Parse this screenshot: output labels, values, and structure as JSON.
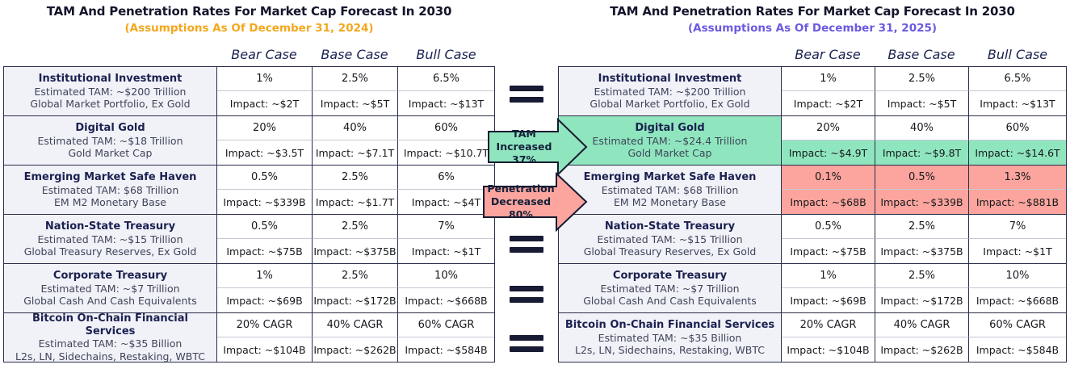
{
  "chart_data": [
    {
      "type": "table",
      "title": "TAM And Penetration Rates For Market Cap Forecast In 2030",
      "subtitle": "(Assumptions As Of December 31, 2024)",
      "subtitle_color": "#F2A81D",
      "columns": [
        "Bear Case",
        "Base Case",
        "Bull Case"
      ],
      "rows": [
        {
          "name": "Institutional Investment",
          "tam": "Estimated TAM: ~$200 Trillion",
          "desc": "Global Market Portfolio, Ex Gold",
          "values": [
            "1%",
            "2.5%",
            "6.5%"
          ],
          "impacts": [
            "Impact: ~$2T",
            "Impact: ~$5T",
            "Impact: ~$13T"
          ]
        },
        {
          "name": "Digital Gold",
          "tam": "Estimated TAM: ~$18 Trillion",
          "desc": "Gold Market Cap",
          "values": [
            "20%",
            "40%",
            "60%"
          ],
          "impacts": [
            "Impact: ~$3.5T",
            "Impact: ~$7.1T",
            "Impact: ~$10.7T"
          ]
        },
        {
          "name": "Emerging Market Safe Haven",
          "tam": "Estimated TAM: $68 Trillion",
          "desc": "EM M2 Monetary Base",
          "values": [
            "0.5%",
            "2.5%",
            "6%"
          ],
          "impacts": [
            "Impact: ~$339B",
            "Impact: ~$1.7T",
            "Impact: ~$4T"
          ]
        },
        {
          "name": "Nation-State Treasury",
          "tam": "Estimated TAM: ~$15 Trillion",
          "desc": "Global Treasury Reserves, Ex Gold",
          "values": [
            "0.5%",
            "2.5%",
            "7%"
          ],
          "impacts": [
            "Impact: ~$75B",
            "Impact: ~$375B",
            "Impact: ~$1T"
          ]
        },
        {
          "name": "Corporate Treasury",
          "tam": "Estimated TAM: ~$7 Trillion",
          "desc": "Global Cash And Cash Equivalents",
          "values": [
            "1%",
            "2.5%",
            "10%"
          ],
          "impacts": [
            "Impact: ~$69B",
            "Impact: ~$172B",
            "Impact: ~$668B"
          ]
        },
        {
          "name": "Bitcoin On-Chain Financial Services",
          "tam": "Estimated TAM: ~$35 Billion",
          "desc": "L2s, LN, Sidechains, Restaking, WBTC",
          "values": [
            "20% CAGR",
            "40% CAGR",
            "60% CAGR"
          ],
          "impacts": [
            "Impact: ~$104B",
            "Impact: ~$262B",
            "Impact: ~$584B"
          ]
        }
      ]
    },
    {
      "type": "table",
      "title": "TAM And Penetration Rates For Market Cap Forecast In 2030",
      "subtitle": "(Assumptions As Of December 31, 2025)",
      "subtitle_color": "#6A5AE0",
      "columns": [
        "Bear Case",
        "Base Case",
        "Bull Case"
      ],
      "rows": [
        {
          "name": "Institutional Investment",
          "tam": "Estimated TAM: ~$200 Trillion",
          "desc": "Global Market Portfolio, Ex Gold",
          "values": [
            "1%",
            "2.5%",
            "6.5%"
          ],
          "impacts": [
            "Impact: ~$2T",
            "Impact: ~$5T",
            "Impact: ~$13T"
          ]
        },
        {
          "name": "Digital Gold",
          "tam": "Estimated TAM: ~$24.4 Trillion",
          "desc": "Gold Market Cap",
          "values": [
            "20%",
            "40%",
            "60%"
          ],
          "impacts": [
            "Impact: ~$4.9T",
            "Impact: ~$9.8T",
            "Impact: ~$14.6T"
          ],
          "hl": {
            "label": "green",
            "impacts": "green"
          }
        },
        {
          "name": "Emerging Market Safe Haven",
          "tam": "Estimated TAM: $68 Trillion",
          "desc": "EM M2 Monetary Base",
          "values": [
            "0.1%",
            "0.5%",
            "1.3%"
          ],
          "impacts": [
            "Impact: ~$68B",
            "Impact: ~$339B",
            "Impact: ~$881B"
          ],
          "hl": {
            "values": "pink",
            "impacts": "pink"
          }
        },
        {
          "name": "Nation-State Treasury",
          "tam": "Estimated TAM: ~$15 Trillion",
          "desc": "Global Treasury Reserves, Ex Gold",
          "values": [
            "0.5%",
            "2.5%",
            "7%"
          ],
          "impacts": [
            "Impact: ~$75B",
            "Impact: ~$375B",
            "Impact: ~$1T"
          ]
        },
        {
          "name": "Corporate Treasury",
          "tam": "Estimated TAM: ~$7 Trillion",
          "desc": "Global Cash And Cash Equivalents",
          "values": [
            "1%",
            "2.5%",
            "10%"
          ],
          "impacts": [
            "Impact: ~$69B",
            "Impact: ~$172B",
            "Impact: ~$668B"
          ]
        },
        {
          "name": "Bitcoin On-Chain Financial Services",
          "tam": "Estimated TAM: ~$35 Billion",
          "desc": "L2s, LN, Sidechains, Restaking, WBTC",
          "values": [
            "20% CAGR",
            "40% CAGR",
            "60% CAGR"
          ],
          "impacts": [
            "Impact: ~$104B",
            "Impact: ~$262B",
            "Impact: ~$584B"
          ]
        }
      ]
    }
  ],
  "connectors": {
    "equals_icon": "=",
    "equals_count": 4,
    "tam_arrow": {
      "icon": "arrow-right",
      "line1": "TAM",
      "line2": "Increased 37%",
      "color": "#8FE6BE"
    },
    "penetration_arrow": {
      "icon": "arrow-right",
      "line1": "Penetration",
      "line2": "Decreased 80%",
      "color": "#FBA59E"
    }
  },
  "colors": {
    "highlight_green": "#8FE6BE",
    "highlight_pink": "#FBA59E",
    "navy_text": "#1B2150",
    "subtitle_2024": "#F2A81D",
    "subtitle_2025": "#6A5AE0",
    "label_bg": "#F1F1F8",
    "border_dark": "#2A2E4A"
  }
}
